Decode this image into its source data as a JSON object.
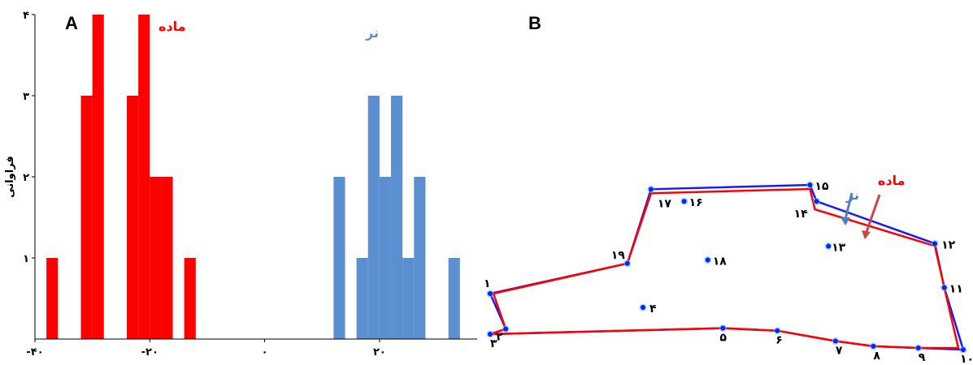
{
  "colors": {
    "female": "#ff0000",
    "male": "#5b8fd0",
    "male_outline": "#1a1aff",
    "point": "#1a1aff",
    "point_glow": "#3fd0e8",
    "axis": "#000000"
  },
  "chart_data": [
    {
      "type": "bar",
      "panel": "A",
      "ylabel": "فراوانی",
      "xlim": [
        -40,
        37
      ],
      "ylim": [
        0,
        4
      ],
      "x_ticks": [
        {
          "v": -40,
          "label": "-۴۰"
        },
        {
          "v": -20,
          "label": "-۲۰"
        },
        {
          "v": 0,
          "label": "۰"
        },
        {
          "v": 20,
          "label": "۲۰"
        }
      ],
      "y_ticks": [
        {
          "v": 1,
          "label": "۱"
        },
        {
          "v": 2,
          "label": "۲"
        },
        {
          "v": 3,
          "label": "۳"
        },
        {
          "v": 4,
          "label": "۴"
        }
      ],
      "bin_width": 2,
      "series": [
        {
          "name": "ماده",
          "color": "#ff0000",
          "bins": [
            {
              "start": -38,
              "count": 1
            },
            {
              "start": -32,
              "count": 3
            },
            {
              "start": -30,
              "count": 4
            },
            {
              "start": -24,
              "count": 3
            },
            {
              "start": -22,
              "count": 4
            },
            {
              "start": -20,
              "count": 2
            },
            {
              "start": -18,
              "count": 2
            },
            {
              "start": -14,
              "count": 1
            }
          ]
        },
        {
          "name": "نر",
          "color": "#5b8fd0",
          "bins": [
            {
              "start": 12,
              "count": 2
            },
            {
              "start": 16,
              "count": 1
            },
            {
              "start": 18,
              "count": 3
            },
            {
              "start": 20,
              "count": 2
            },
            {
              "start": 22,
              "count": 3
            },
            {
              "start": 24,
              "count": 1
            },
            {
              "start": 26,
              "count": 2
            },
            {
              "start": 32,
              "count": 1
            }
          ]
        }
      ]
    },
    {
      "type": "line",
      "panel": "B",
      "landmarks": [
        {
          "id": 1,
          "label": "۱",
          "x": 0.0,
          "y": 0.235
        },
        {
          "id": 2,
          "label": "۲",
          "x": 0.033,
          "y": 0.03
        },
        {
          "id": 3,
          "label": "۳",
          "x": 0.0,
          "y": 0.0
        },
        {
          "id": 4,
          "label": "۴",
          "x": 0.323,
          "y": 0.155
        },
        {
          "id": 5,
          "label": "۵",
          "x": 0.492,
          "y": 0.035
        },
        {
          "id": 6,
          "label": "۶",
          "x": 0.607,
          "y": 0.02
        },
        {
          "id": 7,
          "label": "۷",
          "x": 0.73,
          "y": -0.04
        },
        {
          "id": 8,
          "label": "۸",
          "x": 0.81,
          "y": -0.07
        },
        {
          "id": 9,
          "label": "۹",
          "x": 0.905,
          "y": -0.08
        },
        {
          "id": 10,
          "label": "۱۰",
          "x": 1.0,
          "y": -0.09
        },
        {
          "id": 11,
          "label": "۱۱",
          "x": 0.96,
          "y": 0.27
        },
        {
          "id": 12,
          "label": "۱۲",
          "x": 0.94,
          "y": 0.525
        },
        {
          "id": 13,
          "label": "۱۳",
          "x": 0.715,
          "y": 0.51
        },
        {
          "id": 14,
          "label": "۱۴",
          "x": 0.69,
          "y": 0.77
        },
        {
          "id": 15,
          "label": "۱۵",
          "x": 0.676,
          "y": 0.865
        },
        {
          "id": 16,
          "label": "۱۶",
          "x": 0.41,
          "y": 0.77
        },
        {
          "id": 17,
          "label": "۱۷",
          "x": 0.34,
          "y": 0.84
        },
        {
          "id": 18,
          "label": "۱۸",
          "x": 0.46,
          "y": 0.43
        },
        {
          "id": 19,
          "label": "۱۹",
          "x": 0.29,
          "y": 0.41
        }
      ],
      "series": [
        {
          "name": "نر",
          "color": "#1a1aff",
          "order": [
            1,
            19,
            17,
            15,
            14,
            12,
            11,
            10,
            9,
            8,
            7,
            6,
            5,
            3,
            2,
            1
          ]
        },
        {
          "name": "ماده",
          "color": "#ff0000",
          "order": [
            1,
            19,
            17,
            15,
            14,
            12,
            11,
            10,
            9,
            8,
            7,
            6,
            5,
            3,
            2,
            1
          ]
        }
      ]
    }
  ]
}
